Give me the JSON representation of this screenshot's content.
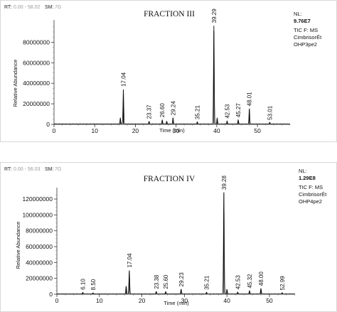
{
  "chart_data": [
    {
      "type": "line",
      "title": "FRACTION III",
      "header": {
        "rt_label": "RT:",
        "rt_range": "0.00 - 58.02",
        "sm_label": "SM:",
        "sm_value": "7G"
      },
      "xlabel": "Time (min)",
      "ylabel": "Relative Abundance",
      "xlim": [
        0,
        58.02
      ],
      "ylim": [
        0,
        97600000
      ],
      "xticks": [
        0,
        10,
        20,
        30,
        40,
        50
      ],
      "yticks": [
        0,
        20000000,
        40000000,
        60000000,
        80000000
      ],
      "ytick_labels": [
        "0",
        "20000000",
        "40000000",
        "60000000",
        "80000000"
      ],
      "info": {
        "nl_label": "NL:",
        "nl_value": "9.76E7",
        "tic": "TIC F: MS",
        "name1": "CimbrisorÉt",
        "name2": "OHP3pe2"
      },
      "peaks": [
        {
          "rt": 16.3,
          "intensity": 6000000
        },
        {
          "rt": 17.04,
          "intensity": 34000000,
          "label": "17.04"
        },
        {
          "rt": 23.37,
          "intensity": 2500000,
          "label": "23.37"
        },
        {
          "rt": 26.6,
          "intensity": 4000000,
          "label": "26.60"
        },
        {
          "rt": 27.7,
          "intensity": 2500000
        },
        {
          "rt": 29.24,
          "intensity": 6000000,
          "label": "29.24"
        },
        {
          "rt": 35.21,
          "intensity": 2000000,
          "label": "35.21"
        },
        {
          "rt": 39.29,
          "intensity": 96000000,
          "label": "39.29"
        },
        {
          "rt": 40.1,
          "intensity": 6000000
        },
        {
          "rt": 42.53,
          "intensity": 3000000,
          "label": "42.53"
        },
        {
          "rt": 45.27,
          "intensity": 4000000,
          "label": "45.27"
        },
        {
          "rt": 48.01,
          "intensity": 15000000,
          "label": "48.01"
        },
        {
          "rt": 53.01,
          "intensity": 1500000,
          "label": "53.01"
        }
      ]
    },
    {
      "type": "line",
      "title": "FRACTION IV",
      "header": {
        "rt_label": "RT:",
        "rt_range": "0.00 - 56.03",
        "sm_label": "SM:",
        "sm_value": "7G"
      },
      "xlabel": "Time (min)",
      "ylabel": "Relative Abundance",
      "xlim": [
        0,
        56.03
      ],
      "ylim": [
        0,
        129000000
      ],
      "xticks": [
        0,
        10,
        20,
        30,
        40,
        50
      ],
      "yticks": [
        0,
        20000000,
        40000000,
        60000000,
        80000000,
        100000000,
        120000000
      ],
      "ytick_labels": [
        "0",
        "20000000",
        "40000000",
        "60000000",
        "80000000",
        "100000000",
        "120000000"
      ],
      "info": {
        "nl_label": "NL:",
        "nl_value": "1.29E8",
        "tic": "TIC F: MS",
        "name1": "CimbrisorÉt",
        "name2": "OHP4pe2"
      },
      "peaks": [
        {
          "rt": 6.1,
          "intensity": 2000000,
          "label": "6.10"
        },
        {
          "rt": 8.5,
          "intensity": 1500000,
          "label": "8.50"
        },
        {
          "rt": 16.3,
          "intensity": 10000000
        },
        {
          "rt": 17.04,
          "intensity": 30000000,
          "label": "17.04"
        },
        {
          "rt": 23.38,
          "intensity": 3000000,
          "label": "23.38"
        },
        {
          "rt": 25.6,
          "intensity": 3000000,
          "label": "25.60"
        },
        {
          "rt": 29.23,
          "intensity": 6000000,
          "label": "29.23"
        },
        {
          "rt": 35.21,
          "intensity": 2000000,
          "label": "35.21"
        },
        {
          "rt": 39.28,
          "intensity": 128000000,
          "label": "39.28"
        },
        {
          "rt": 40.0,
          "intensity": 6000000
        },
        {
          "rt": 42.53,
          "intensity": 2500000,
          "label": "42.53"
        },
        {
          "rt": 45.32,
          "intensity": 4000000,
          "label": "45.32"
        },
        {
          "rt": 48.0,
          "intensity": 7000000,
          "label": "48.00"
        },
        {
          "rt": 52.99,
          "intensity": 1500000,
          "label": "52.99"
        }
      ]
    }
  ]
}
